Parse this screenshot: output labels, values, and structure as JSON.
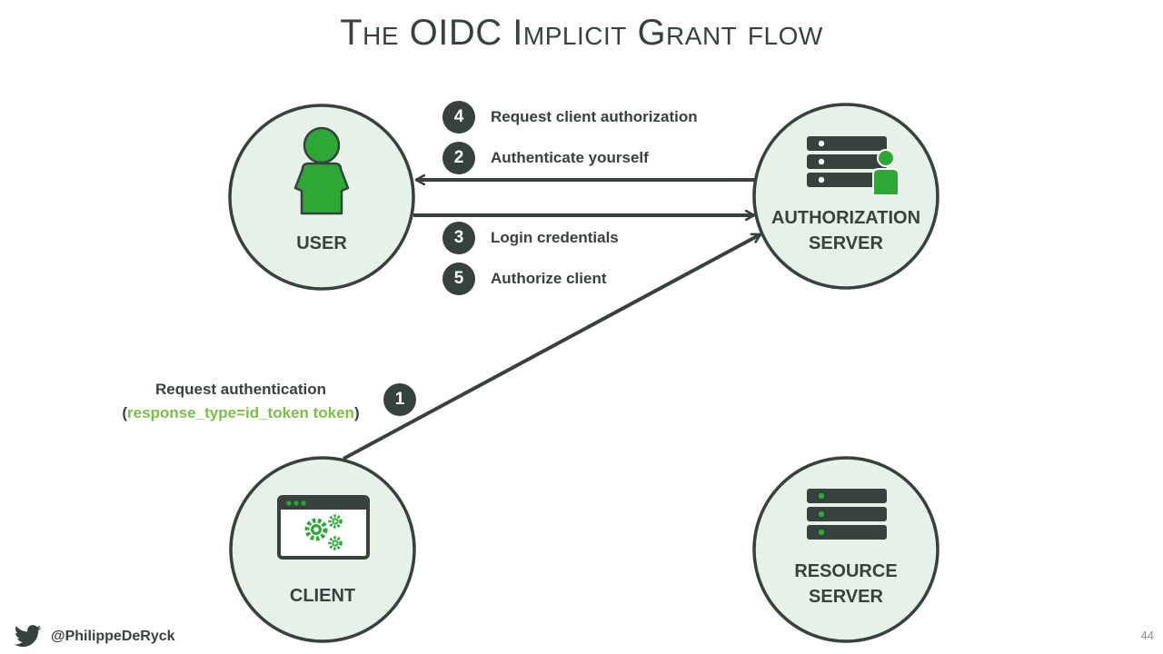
{
  "title": "The OIDC Implicit Grant flow",
  "nodes": {
    "user": "USER",
    "auth_server_line1": "AUTHORIZATION",
    "auth_server_line2": "SERVER",
    "client": "CLIENT",
    "resource_server_line1": "RESOURCE",
    "resource_server_line2": "SERVER"
  },
  "steps": [
    {
      "number": "4",
      "label": "Request client authorization"
    },
    {
      "number": "2",
      "label": "Authenticate yourself"
    },
    {
      "number": "3",
      "label": "Login credentials"
    },
    {
      "number": "5",
      "label": "Authorize client"
    },
    {
      "number": "1",
      "label": "Request authentication"
    }
  ],
  "request_params": {
    "open": "(",
    "value": "response_type=id_token token",
    "close": ")"
  },
  "footer": {
    "twitter_handle": "@PhilippeDeRyck",
    "page_number": "44"
  },
  "colors": {
    "dark": "#37423f",
    "accent_green": "#2ea835",
    "param_green": "#7ac142",
    "circle_fill": "#e7f1e7"
  }
}
